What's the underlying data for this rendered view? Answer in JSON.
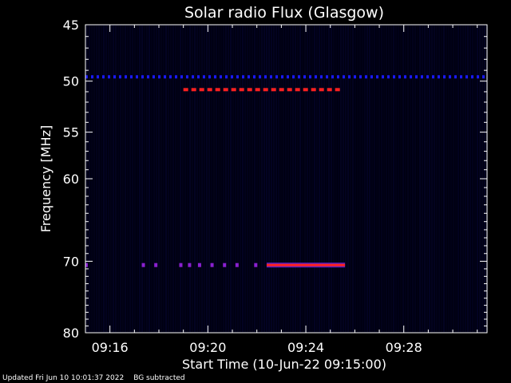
{
  "chart_data": {
    "type": "heatmap",
    "title": "Solar radio Flux (Glasgow)",
    "xlabel": "Start Time (10-Jun-22 09:15:00)",
    "ylabel": "Frequency [MHz]",
    "x_start_time": "09:15:00",
    "x_range_minutes": [
      0,
      16.4
    ],
    "y_range_mhz": [
      45,
      80
    ],
    "y_scale": "log",
    "x_ticks": [
      {
        "label": "09:16",
        "minute": 1
      },
      {
        "label": "09:20",
        "minute": 5
      },
      {
        "label": "09:24",
        "minute": 9
      },
      {
        "label": "09:28",
        "minute": 13
      }
    ],
    "y_ticks": [
      45,
      50,
      55,
      60,
      70,
      80
    ],
    "background_color": "#000010",
    "colors": {
      "weak": "#1a1aff",
      "medium": "#8a20d0",
      "strong": "#ff2020"
    },
    "features": [
      {
        "name": "blue dashed line",
        "freq_mhz": 49.6,
        "minute_start": 0,
        "minute_end": 16.4,
        "intensity": "weak",
        "pattern": "dashed"
      },
      {
        "name": "red dashed line",
        "freq_mhz": 50.8,
        "minute_start": 4.0,
        "minute_end": 10.4,
        "intensity": "strong",
        "pattern": "dashed"
      },
      {
        "name": "70.5 MHz segments",
        "freq_mhz": 70.5,
        "minute_start": 2.3,
        "minute_end": 7.4,
        "intensity": "medium",
        "pattern": "sparse"
      },
      {
        "name": "70.5 MHz band",
        "freq_mhz": 70.5,
        "minute_start": 7.4,
        "minute_end": 10.6,
        "intensity": "strong",
        "pattern": "solid"
      }
    ]
  },
  "footer": {
    "updated": "Updated Fri Jun 10 10:01:37 2022",
    "note": "BG subtracted"
  }
}
